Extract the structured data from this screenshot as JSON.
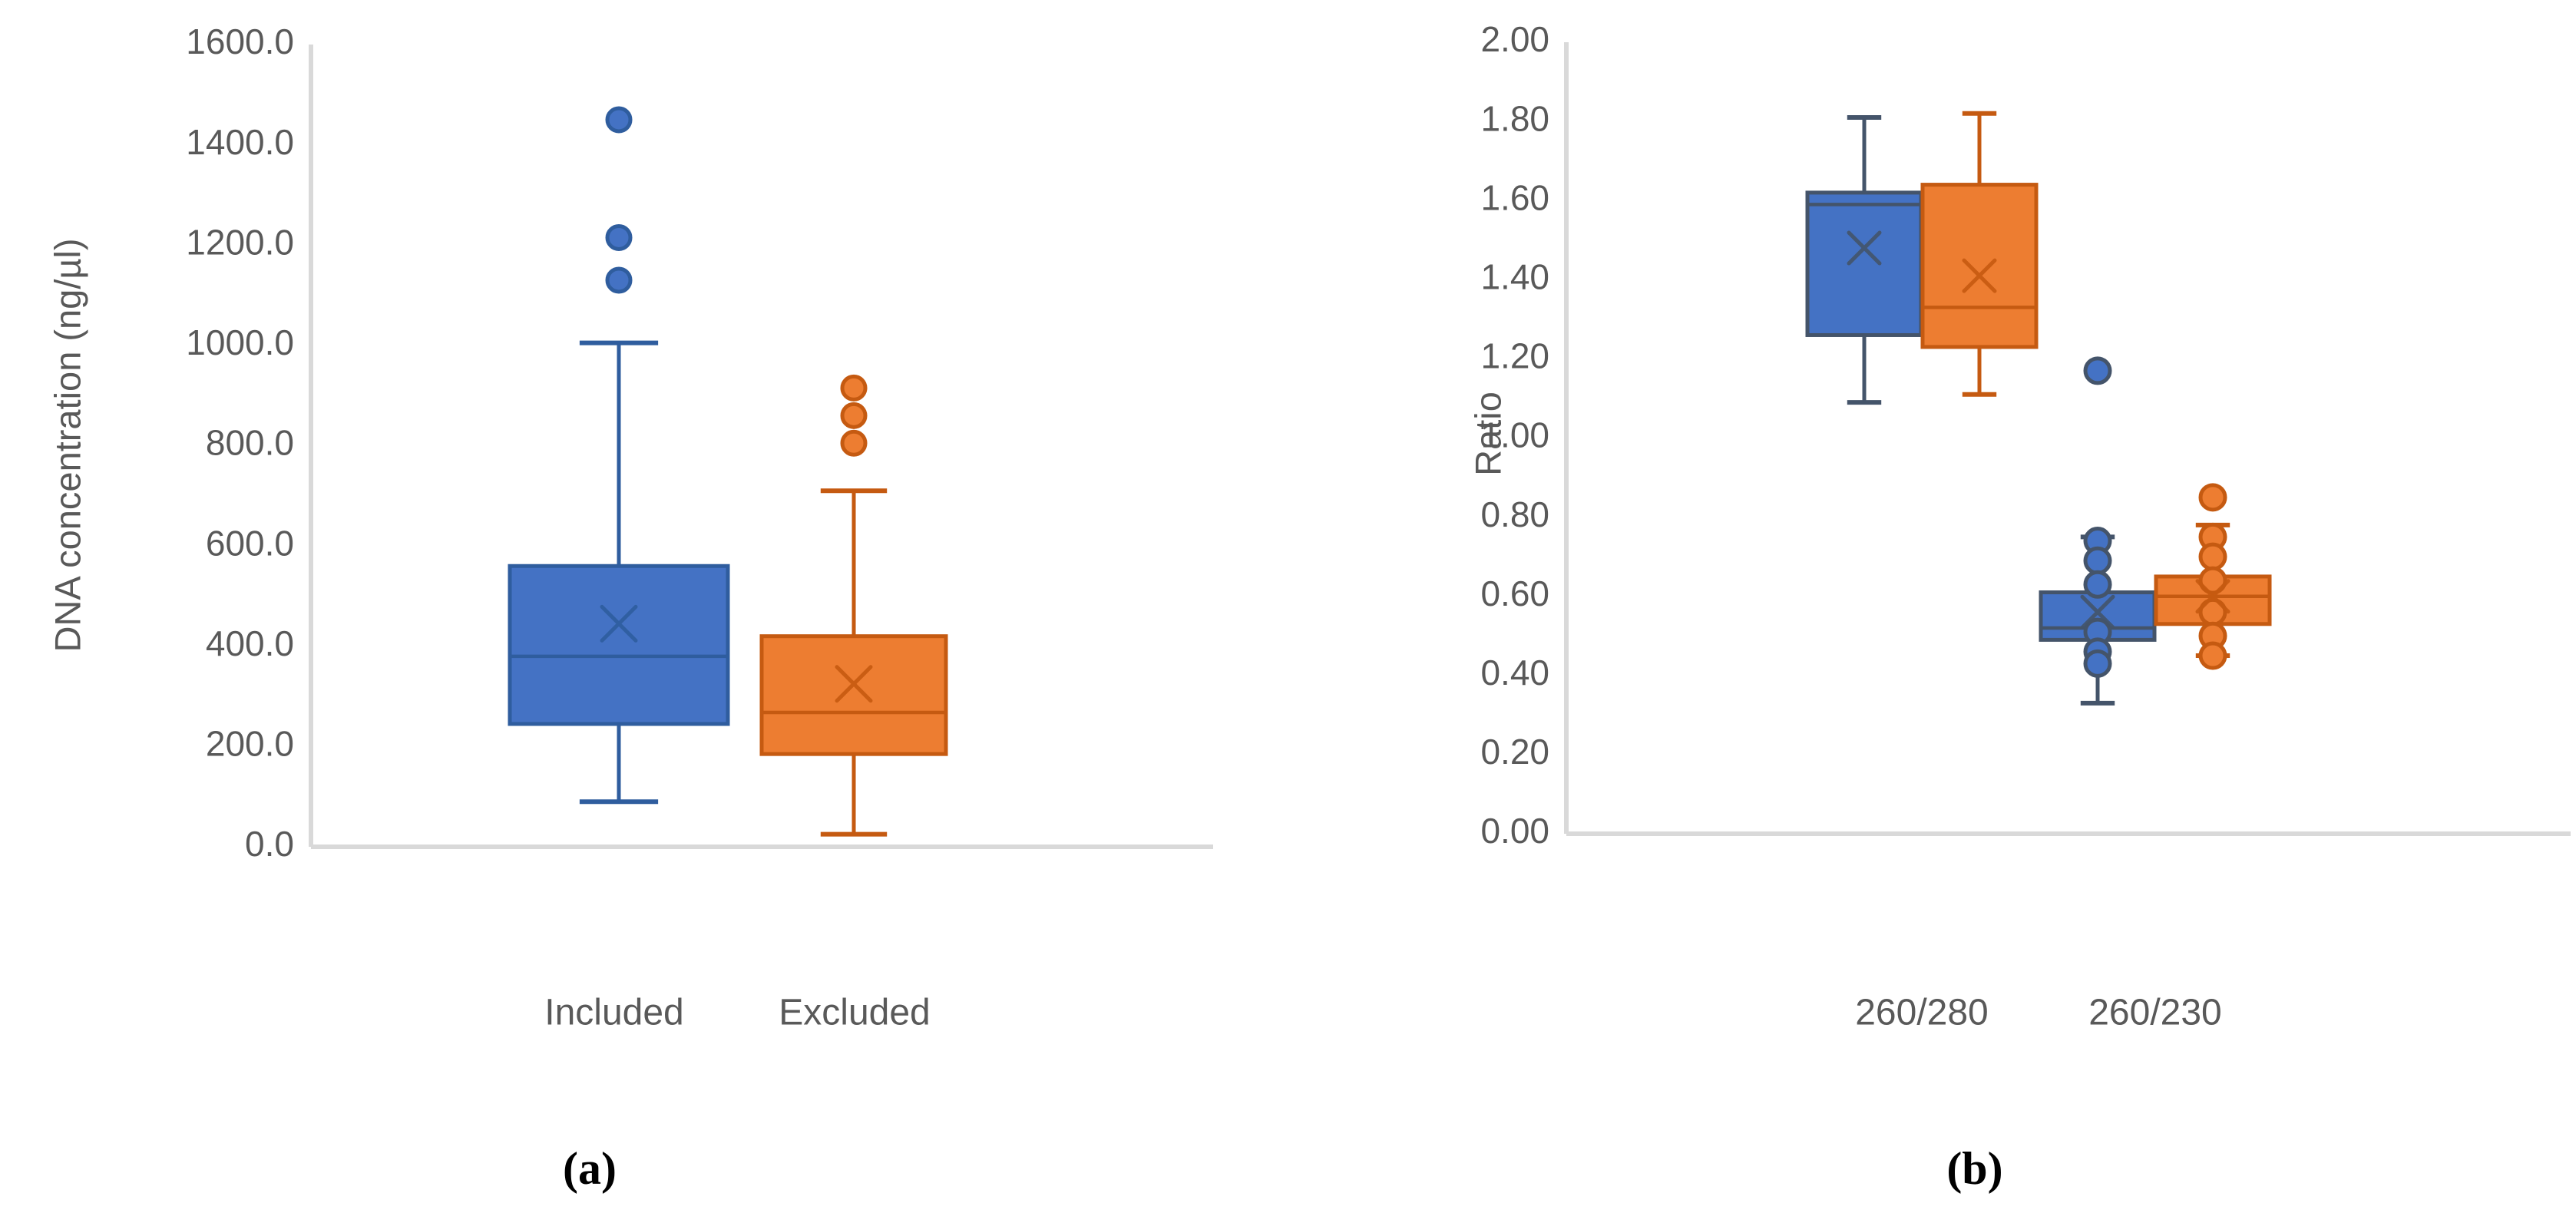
{
  "figure": {
    "background": "#FFFFFF",
    "text_color": "#595959",
    "axis_line_color": "#D9D9D9",
    "caption_color": "#000000"
  },
  "chart_data": [
    {
      "type": "boxplot",
      "panel": "a",
      "caption": "(a)",
      "ylabel": "DNA concentration (ng/µl)",
      "ylim": [
        0,
        1600
      ],
      "ytick_step": 200,
      "ytick_labels": [
        "0.0",
        "200.0",
        "400.0",
        "600.0",
        "800.0",
        "1000.0",
        "1200.0",
        "1400.0",
        "1600.0"
      ],
      "grid": false,
      "legend": "none",
      "categories": [
        "Included",
        "Excluded"
      ],
      "boxes": [
        {
          "category": "Included",
          "series": "blue",
          "fill": "#4472C4",
          "stroke": "#2F5D9E",
          "min": 90,
          "q1": 245,
          "median": 380,
          "mean": 445,
          "q3": 560,
          "max": 1005,
          "outliers": [
            1130,
            1215,
            1450
          ],
          "points": []
        },
        {
          "category": "Excluded",
          "series": "orange",
          "fill": "#ED7D31",
          "stroke": "#C55A11",
          "min": 25,
          "q1": 185,
          "median": 268,
          "mean": 325,
          "q3": 420,
          "max": 710,
          "outliers": [
            805,
            860,
            915
          ],
          "points": []
        }
      ]
    },
    {
      "type": "boxplot",
      "panel": "b",
      "caption": "(b)",
      "ylabel": "Ratio",
      "ylim": [
        0,
        2
      ],
      "ytick_step": 0.2,
      "ytick_labels": [
        "0.00",
        "0.20",
        "0.40",
        "0.60",
        "0.80",
        "1.00",
        "1.20",
        "1.40",
        "1.60",
        "1.80",
        "2.00"
      ],
      "grid": false,
      "legend": "none",
      "categories": [
        "260/280",
        "260/230"
      ],
      "boxes": [
        {
          "category": "260/280",
          "series": "blue",
          "fill": "#4472C4",
          "stroke": "#44546A",
          "min": 1.09,
          "q1": 1.26,
          "median": 1.59,
          "mean": 1.48,
          "q3": 1.62,
          "max": 1.81,
          "outliers": [],
          "points": []
        },
        {
          "category": "260/280",
          "series": "orange",
          "fill": "#ED7D31",
          "stroke": "#C55A11",
          "min": 1.11,
          "q1": 1.23,
          "median": 1.33,
          "mean": 1.41,
          "q3": 1.64,
          "max": 1.82,
          "outliers": [],
          "points": []
        },
        {
          "category": "260/230",
          "series": "blue",
          "fill": "#4472C4",
          "stroke": "#44546A",
          "min": 0.33,
          "q1": 0.49,
          "median": 0.52,
          "mean": 0.56,
          "q3": 0.61,
          "max": 0.75,
          "outliers": [
            1.17
          ],
          "points": [
            0.74,
            0.69,
            0.63,
            0.51,
            0.46,
            0.43
          ]
        },
        {
          "category": "260/230",
          "series": "orange",
          "fill": "#ED7D31",
          "stroke": "#C55A11",
          "min": 0.45,
          "q1": 0.53,
          "median": 0.6,
          "mean": 0.6,
          "q3": 0.65,
          "max": 0.78,
          "outliers": [
            0.85
          ],
          "points": [
            0.75,
            0.7,
            0.64,
            0.56,
            0.5,
            0.45
          ]
        }
      ]
    }
  ]
}
